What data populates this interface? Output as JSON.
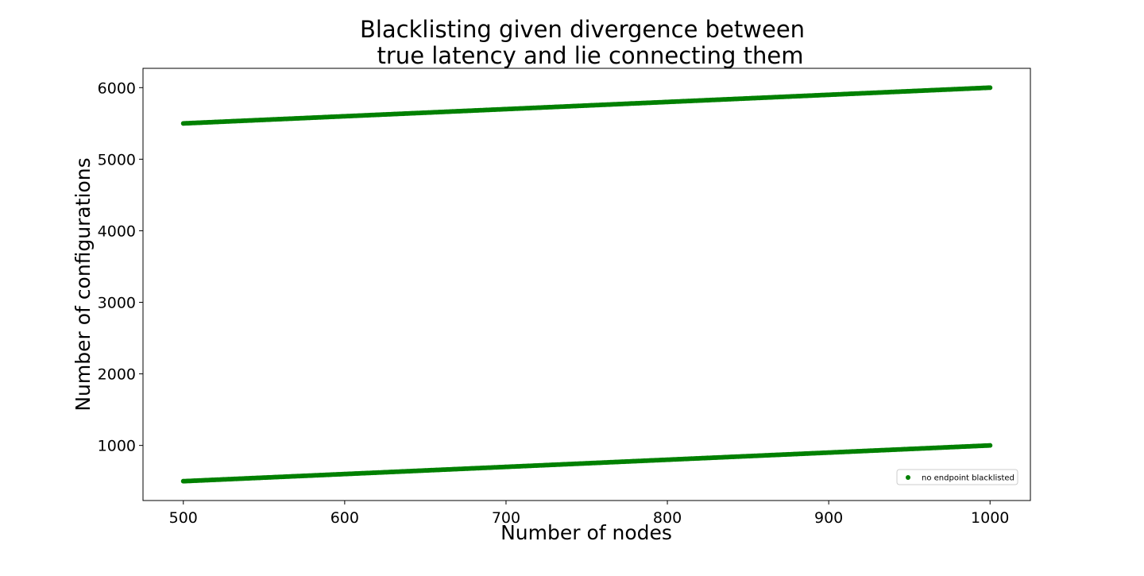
{
  "chart_data": {
    "type": "scatter",
    "title_lines": [
      "Blacklisting given divergence between",
      "true latency and lie connecting them"
    ],
    "xlabel": "Number of nodes",
    "ylabel": "Number of configurations",
    "xlim": [
      475,
      1025
    ],
    "ylim": [
      230,
      6270
    ],
    "xticks": [
      500,
      600,
      700,
      800,
      900,
      1000
    ],
    "yticks": [
      1000,
      2000,
      3000,
      4000,
      5000,
      6000
    ],
    "grid": false,
    "legend_position": "lower right",
    "series": [
      {
        "name": "no endpoint blacklisted",
        "color": "#008000",
        "description": "two dense point bands: y = x and y = x + 5000 for x in 500..1000",
        "bands": [
          {
            "x_start": 500,
            "x_end": 1000,
            "y_start": 500,
            "y_end": 1000
          },
          {
            "x_start": 500,
            "x_end": 1000,
            "y_start": 5500,
            "y_end": 6000
          }
        ]
      }
    ]
  }
}
